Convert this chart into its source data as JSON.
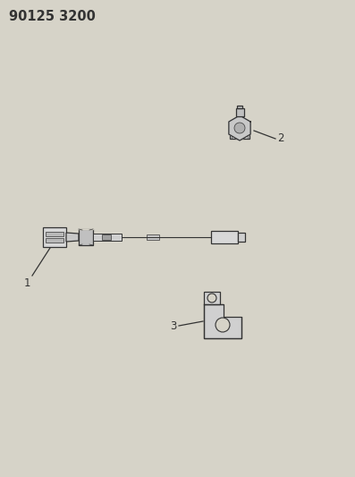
{
  "title": "90125 3200",
  "background_color": "#d6d3c8",
  "line_color": "#333333",
  "fig_width": 3.97,
  "fig_height": 5.33,
  "dpi": 100,
  "title_fontsize": 10.5,
  "label_fontsize": 8.5,
  "parts": {
    "part1_label": "1",
    "part2_label": "2",
    "part3_label": "3"
  }
}
